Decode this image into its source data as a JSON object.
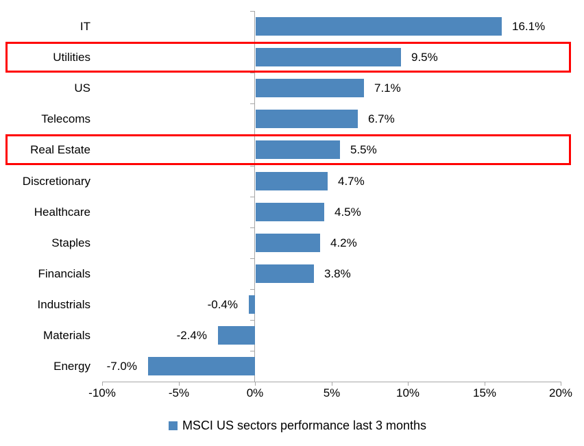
{
  "chart_data": {
    "type": "bar",
    "orientation": "horizontal",
    "categories": [
      "IT",
      "Utilities",
      "US",
      "Telecoms",
      "Real Estate",
      "Discretionary",
      "Healthcare",
      "Staples",
      "Financials",
      "Industrials",
      "Materials",
      "Energy"
    ],
    "values": [
      16.1,
      9.5,
      7.1,
      6.7,
      5.5,
      4.7,
      4.5,
      4.2,
      3.8,
      -0.4,
      -2.4,
      -7.0
    ],
    "value_labels": [
      "16.1%",
      "9.5%",
      "7.1%",
      "6.7%",
      "5.5%",
      "4.7%",
      "4.5%",
      "4.2%",
      "3.8%",
      "-0.4%",
      "-2.4%",
      "-7.0%"
    ],
    "x_ticks": [
      "-10%",
      "-5%",
      "0%",
      "5%",
      "10%",
      "15%",
      "20%"
    ],
    "x_tick_values": [
      -10,
      -5,
      0,
      5,
      10,
      15,
      20
    ],
    "xlim": [
      -10,
      20
    ],
    "grid": false,
    "legend": "MSCI US sectors performance last 3 months",
    "legend_position": "bottom",
    "highlighted_categories": [
      "Utilities",
      "Real Estate"
    ],
    "colors": {
      "bar": "#4E87BD",
      "axis": "#A6A6A6",
      "highlight": "#FF0000",
      "text": "#000000"
    }
  }
}
